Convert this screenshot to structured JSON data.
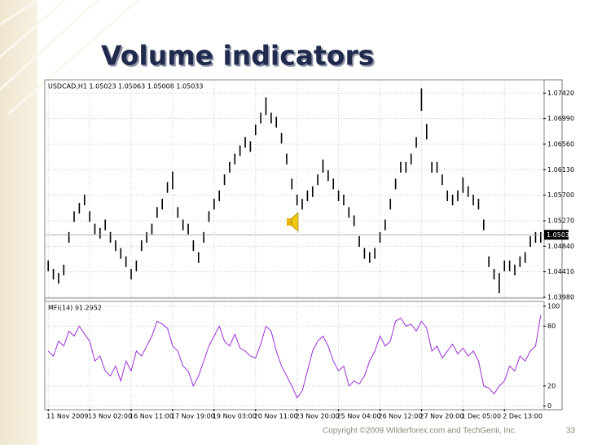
{
  "slide": {
    "title": "Volume indicators",
    "footer": "Copyright ©2009 Wilderforex.com and TechGenii, Inc.",
    "page_number": "33"
  },
  "chart_data": [
    {
      "type": "range",
      "title": "USDCAD,H1 1.05023 1.05063 1.05008 1.05033",
      "color": "#000000",
      "high": [
        1.046,
        1.0446,
        1.0439,
        1.0453,
        1.0508,
        1.0543,
        1.0557,
        1.0571,
        1.0543,
        1.0522,
        1.0515,
        1.0529,
        1.0508,
        1.0494,
        1.0481,
        1.0467,
        1.0446,
        1.046,
        1.0494,
        1.0508,
        1.0522,
        1.055,
        1.0564,
        1.0592,
        1.061,
        1.055,
        1.0529,
        1.0522,
        1.0494,
        1.0474,
        1.0508,
        1.0543,
        1.0564,
        1.0578,
        1.0605,
        1.0626,
        1.064,
        1.0654,
        1.0668,
        1.0661,
        1.0689,
        1.0709,
        1.0735,
        1.0709,
        1.0702,
        1.0675,
        1.064,
        1.0598,
        1.0571,
        1.0564,
        1.0578,
        1.0585,
        1.0605,
        1.063,
        1.0612,
        1.0598,
        1.0578,
        1.0571,
        1.055,
        1.0536,
        1.0501,
        1.0481,
        1.0474,
        1.0481,
        1.0508,
        1.0529,
        1.0564,
        1.0598,
        1.0626,
        1.0626,
        1.064,
        1.0668,
        1.075,
        1.069,
        1.0626,
        1.0626,
        1.0605,
        1.0578,
        1.0571,
        1.0578,
        1.06,
        1.0585,
        1.0571,
        1.0564,
        1.0529,
        1.0467,
        1.0446,
        1.0439,
        1.046,
        1.046,
        1.0453,
        1.0467,
        1.0474,
        1.0501,
        1.0508,
        1.0508
      ],
      "low": [
        1.0442,
        1.0428,
        1.0421,
        1.0435,
        1.049,
        1.0525,
        1.0539,
        1.0553,
        1.0525,
        1.0504,
        1.0497,
        1.0511,
        1.049,
        1.0476,
        1.0463,
        1.0449,
        1.0428,
        1.0442,
        1.0476,
        1.049,
        1.0504,
        1.0532,
        1.0546,
        1.0574,
        1.058,
        1.0532,
        1.0511,
        1.0504,
        1.0476,
        1.0456,
        1.049,
        1.0525,
        1.0546,
        1.056,
        1.0587,
        1.0608,
        1.0622,
        1.0636,
        1.065,
        1.0643,
        1.0671,
        1.0691,
        1.0705,
        1.0691,
        1.0684,
        1.0657,
        1.0622,
        1.058,
        1.0553,
        1.0546,
        1.056,
        1.0567,
        1.0587,
        1.0608,
        1.0594,
        1.058,
        1.056,
        1.0553,
        1.0532,
        1.0518,
        1.0483,
        1.0463,
        1.0456,
        1.0463,
        1.049,
        1.0511,
        1.0546,
        1.058,
        1.0608,
        1.0608,
        1.0622,
        1.065,
        1.0712,
        1.0664,
        1.0608,
        1.0608,
        1.0587,
        1.056,
        1.0553,
        1.056,
        1.0574,
        1.0567,
        1.0553,
        1.0546,
        1.0511,
        1.0449,
        1.0428,
        1.0405,
        1.0442,
        1.0442,
        1.0435,
        1.0449,
        1.0456,
        1.0483,
        1.049,
        1.049
      ],
      "ylim": [
        1.0398,
        1.0763
      ],
      "yticks": [
        {
          "value": 1.0742,
          "label": "1.07420"
        },
        {
          "value": 1.0699,
          "label": "1.06990"
        },
        {
          "value": 1.0656,
          "label": "1.06560"
        },
        {
          "value": 1.0613,
          "label": "1.06130"
        },
        {
          "value": 1.057,
          "label": "1.05700"
        },
        {
          "value": 1.0527,
          "label": "1.05270"
        },
        {
          "value": 1.0484,
          "label": "1.04840"
        },
        {
          "value": 1.0441,
          "label": "1.04410"
        },
        {
          "value": 1.0398,
          "label": "1.03980"
        }
      ],
      "last_price": {
        "value": 1.05033,
        "label": "1.05033"
      },
      "grid": true
    },
    {
      "type": "line",
      "title": "MFI(14) 91.2952",
      "color": "#9b30d9",
      "categories": [
        "11 Nov 2009",
        null,
        null,
        null,
        null,
        null,
        null,
        null,
        "13 Nov 02:00",
        null,
        null,
        null,
        null,
        null,
        null,
        null,
        "16 Nov 11:00",
        null,
        null,
        null,
        null,
        null,
        null,
        null,
        "17 Nov 19:00",
        null,
        null,
        null,
        null,
        null,
        null,
        null,
        "19 Nov 03:00",
        null,
        null,
        null,
        null,
        null,
        null,
        null,
        "20 Nov 11:00",
        null,
        null,
        null,
        null,
        null,
        null,
        null,
        "23 Nov 20:00",
        null,
        null,
        null,
        null,
        null,
        null,
        null,
        "25 Nov 04:00",
        null,
        null,
        null,
        null,
        null,
        null,
        null,
        "26 Nov 12:00",
        null,
        null,
        null,
        null,
        null,
        null,
        null,
        "27 Nov 20:00",
        null,
        null,
        null,
        null,
        null,
        null,
        null,
        "1 Dec 05:00",
        null,
        null,
        null,
        null,
        null,
        null,
        null,
        "2 Dec 13:00",
        null,
        null,
        null,
        null,
        null,
        null,
        null
      ],
      "values": [
        55,
        50,
        65,
        60,
        75,
        70,
        80,
        72,
        65,
        45,
        50,
        35,
        30,
        40,
        25,
        45,
        35,
        55,
        50,
        60,
        70,
        85,
        82,
        78,
        60,
        55,
        40,
        35,
        20,
        30,
        45,
        60,
        70,
        80,
        65,
        60,
        72,
        58,
        55,
        50,
        48,
        62,
        80,
        75,
        55,
        40,
        30,
        20,
        8,
        15,
        35,
        55,
        65,
        70,
        60,
        45,
        35,
        40,
        20,
        25,
        22,
        30,
        45,
        55,
        70,
        60,
        65,
        85,
        88,
        80,
        82,
        75,
        85,
        78,
        55,
        60,
        48,
        55,
        62,
        52,
        58,
        50,
        55,
        45,
        20,
        18,
        12,
        20,
        25,
        40,
        35,
        50,
        45,
        55,
        60,
        91
      ],
      "ylim": [
        -3,
        104
      ],
      "yticks": [
        0,
        20,
        80,
        100
      ],
      "grid": true
    }
  ]
}
